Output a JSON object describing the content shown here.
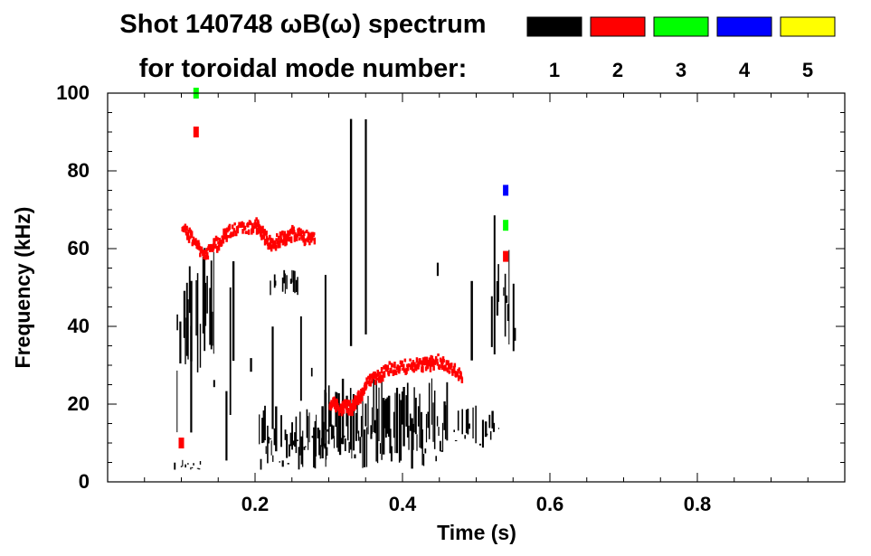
{
  "chart_data": {
    "type": "heatmap",
    "title_line1": "Shot 140748 ωB(ω) spectrum",
    "title_line2": "for toroidal mode number:",
    "xlabel": "Time (s)",
    "ylabel": "Frequency (kHz)",
    "xlim": [
      0.0,
      1.0
    ],
    "ylim": [
      0,
      100
    ],
    "x_ticks": [
      0.2,
      0.4,
      0.6,
      0.8
    ],
    "x_tick_labels": [
      "0.2",
      "0.4",
      "0.6",
      "0.8"
    ],
    "y_ticks": [
      0,
      20,
      40,
      60,
      80,
      100
    ],
    "y_tick_labels": [
      "0",
      "20",
      "40",
      "60",
      "80",
      "100"
    ],
    "legend": [
      {
        "label": "1",
        "color": "#000000"
      },
      {
        "label": "2",
        "color": "#ff0000"
      },
      {
        "label": "3",
        "color": "#00ff00"
      },
      {
        "label": "4",
        "color": "#0000ff"
      },
      {
        "label": "5",
        "color": "#ffff00"
      }
    ],
    "regions": [
      {
        "mode": 1,
        "t": [
          0.09,
          0.15
        ],
        "f": [
          28,
          62
        ],
        "density": 0.55
      },
      {
        "mode": 1,
        "t": [
          0.09,
          0.3
        ],
        "f": [
          3,
          60
        ],
        "density": 0.1
      },
      {
        "mode": 1,
        "t": [
          0.205,
          0.3
        ],
        "f": [
          3,
          20
        ],
        "density": 0.9
      },
      {
        "mode": 1,
        "t": [
          0.29,
          0.46
        ],
        "f": [
          3,
          27
        ],
        "density": 0.9
      },
      {
        "mode": 1,
        "t": [
          0.46,
          0.53
        ],
        "f": [
          8,
          20
        ],
        "density": 0.5
      },
      {
        "mode": 1,
        "t": [
          0.22,
          0.26
        ],
        "f": [
          48,
          55
        ],
        "density": 0.7
      },
      {
        "mode": 1,
        "t": [
          0.29,
          0.5
        ],
        "f": [
          27,
          95
        ],
        "density": 0.06
      },
      {
        "mode": 1,
        "t": [
          0.09,
          0.13
        ],
        "f": [
          3,
          6
        ],
        "density": 0.6
      },
      {
        "mode": 1,
        "t": [
          0.52,
          0.555
        ],
        "f": [
          30,
          70
        ],
        "density": 0.3
      }
    ],
    "mode2_trace": {
      "mode": 2,
      "t": [
        0.1,
        0.13,
        0.16,
        0.2,
        0.22,
        0.25,
        0.28,
        0.3,
        0.33,
        0.35,
        0.38,
        0.42,
        0.45,
        0.48
      ],
      "f": [
        66,
        58,
        64,
        66,
        61,
        64,
        62,
        20,
        19,
        25,
        29,
        30,
        31,
        27
      ]
    },
    "other_marks": [
      {
        "mode": 2,
        "t": 0.12,
        "f": 90
      },
      {
        "mode": 2,
        "t": 0.54,
        "f": 58
      },
      {
        "mode": 2,
        "t": 0.1,
        "f": 10
      },
      {
        "mode": 3,
        "t": 0.54,
        "f": 66
      },
      {
        "mode": 3,
        "t": 0.12,
        "f": 100
      },
      {
        "mode": 4,
        "t": 0.54,
        "f": 75
      }
    ]
  }
}
